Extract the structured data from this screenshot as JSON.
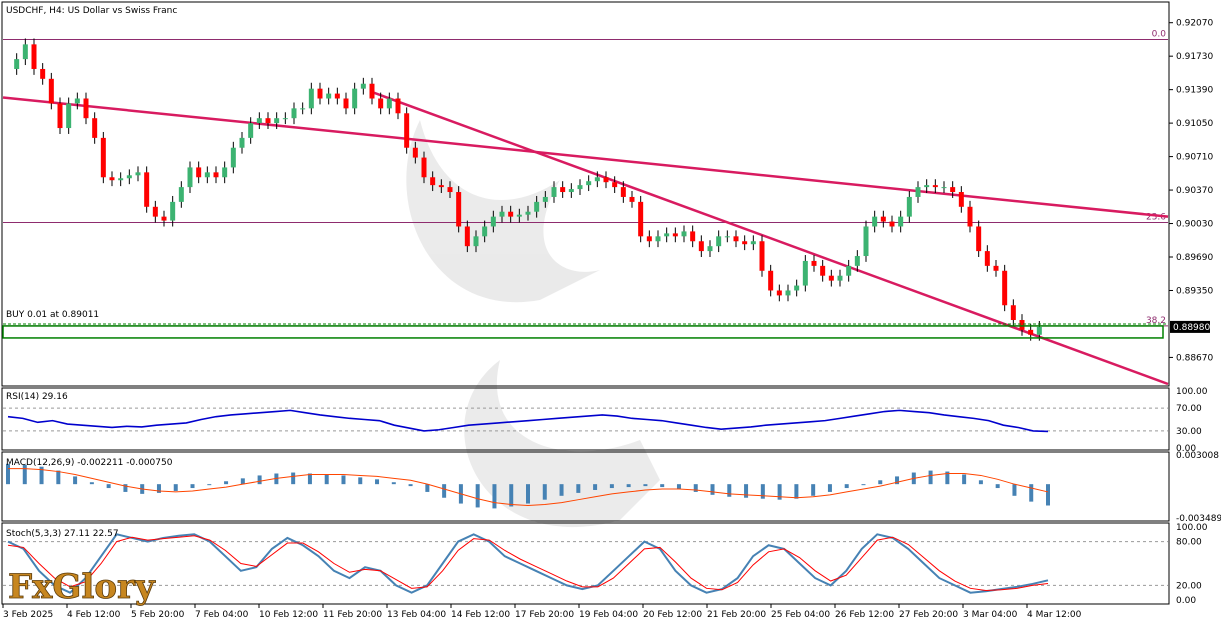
{
  "chart_data": {
    "symbol_title": "USDCHF, H4:  US Dollar vs Swiss Franc",
    "type": "candlestick",
    "colors": {
      "bull": "#3cb371",
      "bear": "#ff0000",
      "trend": "#d81b60",
      "level": "#8e2c6e",
      "rsi": "#0000cd",
      "macd_hist": "#4682b4",
      "signal": "#ff4500",
      "buy_zone": "#008000"
    },
    "price_axis": {
      "min": 0.884,
      "max": 0.9226,
      "ticks": [
        "0.92070",
        "0.91730",
        "0.91390",
        "0.91050",
        "0.90710",
        "0.90370",
        "0.90030",
        "0.89690",
        "0.89350",
        "0.88670"
      ],
      "current": "0.88980"
    },
    "time_labels": [
      "3 Feb 2025",
      "4 Feb 12:00",
      "5 Feb 20:00",
      "7 Feb 04:00",
      "10 Feb 12:00",
      "11 Feb 20:00",
      "13 Feb 04:00",
      "14 Feb 12:00",
      "17 Feb 20:00",
      "19 Feb 04:00",
      "20 Feb 12:00",
      "21 Feb 20:00",
      "25 Feb 04:00",
      "26 Feb 12:00",
      "27 Feb 20:00",
      "3 Mar 04:00",
      "4 Mar 12:00"
    ],
    "close_path": [
      0.916,
      0.917,
      0.9185,
      0.916,
      0.915,
      0.9125,
      0.91,
      0.9125,
      0.913,
      0.911,
      0.909,
      0.905,
      0.9047,
      0.9049,
      0.9052,
      0.9055,
      0.902,
      0.901,
      0.9006,
      0.9025,
      0.904,
      0.906,
      0.905,
      0.9055,
      0.905,
      0.906,
      0.908,
      0.909,
      0.9105,
      0.911,
      0.9105,
      0.911,
      0.911,
      0.912,
      0.912,
      0.914,
      0.913,
      0.9135,
      0.913,
      0.912,
      0.914,
      0.9145,
      0.913,
      0.912,
      0.913,
      0.9115,
      0.908,
      0.907,
      0.905,
      0.9042,
      0.904,
      0.9035,
      0.9,
      0.898,
      0.899,
      0.9,
      0.901,
      0.9015,
      0.901,
      0.9012,
      0.9015,
      0.9025,
      0.903,
      0.904,
      0.9035,
      0.9038,
      0.9042,
      0.9046,
      0.905,
      0.9045,
      0.904,
      0.903,
      0.9025,
      0.899,
      0.8985,
      0.899,
      0.8993,
      0.899,
      0.8995,
      0.8985,
      0.8975,
      0.898,
      0.899,
      0.899,
      0.8985,
      0.8982,
      0.8985,
      0.8955,
      0.8935,
      0.893,
      0.8935,
      0.894,
      0.8965,
      0.896,
      0.895,
      0.8945,
      0.895,
      0.896,
      0.897,
      0.9,
      0.901,
      0.9005,
      0.9,
      0.901,
      0.903,
      0.904,
      0.9042,
      0.904,
      0.904,
      0.9035,
      0.902,
      0.9,
      0.8975,
      0.896,
      0.8955,
      0.892,
      0.8905,
      0.8895,
      0.889,
      0.8898
    ],
    "levels": [
      {
        "label": "0.0",
        "price": 0.919
      },
      {
        "label": "23.6",
        "price": 0.9004
      },
      {
        "label": "38.2",
        "price": 0.8899
      }
    ],
    "trendlines": [
      {
        "from": [
          0,
          0.9131
        ],
        "to": [
          1,
          0.901
        ]
      },
      {
        "from": [
          0.318,
          0.9136
        ],
        "to": [
          1,
          0.884
        ]
      }
    ],
    "order_label": "BUY 0.01 at 0.89011",
    "order_price": 0.8901,
    "rsi": {
      "label": "RSI(14) 29.16",
      "ticks": [
        "100.00",
        "70.00",
        "30.00",
        "0.00"
      ],
      "values": [
        55,
        52,
        45,
        48,
        42,
        40,
        38,
        36,
        38,
        37,
        40,
        42,
        44,
        50,
        55,
        58,
        60,
        62,
        64,
        66,
        62,
        58,
        55,
        52,
        50,
        48,
        40,
        35,
        30,
        32,
        36,
        40,
        42,
        44,
        46,
        48,
        50,
        52,
        54,
        56,
        58,
        56,
        52,
        50,
        48,
        44,
        40,
        36,
        33,
        35,
        37,
        40,
        42,
        44,
        46,
        48,
        52,
        56,
        60,
        64,
        66,
        64,
        62,
        58,
        55,
        52,
        48,
        40,
        36,
        30,
        29
      ]
    },
    "macd": {
      "label": "MACD(12,26,9) -0.002211 -0.000750",
      "ticks": [
        "0.003008",
        "-0.003489"
      ],
      "histogram": [
        0.0021,
        0.002,
        0.0018,
        0.0014,
        0.0008,
        0.0002,
        -0.0004,
        -0.0008,
        -0.001,
        -0.0009,
        -0.0007,
        -0.0004,
        -0.0001,
        0.0003,
        0.0006,
        0.0009,
        0.0011,
        0.0012,
        0.0011,
        0.001,
        0.0009,
        0.0007,
        0.0005,
        0.0002,
        -0.0002,
        -0.0008,
        -0.0014,
        -0.002,
        -0.0024,
        -0.0025,
        -0.0023,
        -0.002,
        -0.0016,
        -0.0012,
        -0.0009,
        -0.0006,
        -0.0004,
        -0.0003,
        -0.0002,
        -0.0003,
        -0.0005,
        -0.0008,
        -0.0011,
        -0.0013,
        -0.0014,
        -0.0015,
        -0.0016,
        -0.0015,
        -0.0012,
        -0.0008,
        -0.0004,
        0.0,
        0.0004,
        0.0008,
        0.0012,
        0.0014,
        0.0013,
        0.001,
        0.0004,
        -0.0004,
        -0.0012,
        -0.0018,
        -0.0022
      ],
      "signal": [
        0.0016,
        0.0016,
        0.0015,
        0.0013,
        0.001,
        0.0006,
        0.0002,
        -0.0002,
        -0.0005,
        -0.0007,
        -0.0008,
        -0.0007,
        -0.0005,
        -0.0003,
        0.0,
        0.0003,
        0.0006,
        0.0008,
        0.001,
        0.001,
        0.001,
        0.0009,
        0.0008,
        0.0006,
        0.0004,
        0.0,
        -0.0005,
        -0.001,
        -0.0015,
        -0.0019,
        -0.0021,
        -0.0022,
        -0.0021,
        -0.0019,
        -0.0016,
        -0.0013,
        -0.001,
        -0.0008,
        -0.0006,
        -0.0005,
        -0.0005,
        -0.0006,
        -0.0008,
        -0.001,
        -0.0011,
        -0.0012,
        -0.0013,
        -0.0014,
        -0.0013,
        -0.0011,
        -0.0008,
        -0.0005,
        -0.0002,
        0.0002,
        0.0006,
        0.0009,
        0.0011,
        0.0011,
        0.0009,
        0.0005,
        0.0,
        -0.0004,
        -0.0008
      ]
    },
    "stoch": {
      "label": "Stoch(5,3,3) 27.11 22.57",
      "ticks": [
        "100.00",
        "80.00",
        "20.00",
        "0.00"
      ],
      "main": [
        80,
        70,
        40,
        20,
        10,
        30,
        60,
        90,
        85,
        80,
        85,
        88,
        90,
        80,
        60,
        40,
        45,
        70,
        85,
        75,
        60,
        40,
        30,
        45,
        40,
        20,
        10,
        20,
        50,
        80,
        90,
        80,
        60,
        50,
        40,
        30,
        20,
        15,
        20,
        40,
        60,
        80,
        70,
        40,
        20,
        10,
        15,
        30,
        60,
        75,
        70,
        50,
        30,
        20,
        40,
        70,
        90,
        85,
        70,
        50,
        30,
        20,
        10,
        12,
        15,
        18,
        22,
        27
      ],
      "signal": [
        75,
        72,
        50,
        30,
        18,
        25,
        50,
        80,
        86,
        82,
        84,
        86,
        88,
        82,
        68,
        50,
        46,
        62,
        78,
        78,
        66,
        50,
        38,
        42,
        40,
        28,
        16,
        18,
        40,
        68,
        84,
        82,
        68,
        56,
        46,
        36,
        26,
        18,
        18,
        30,
        50,
        70,
        72,
        52,
        30,
        16,
        14,
        24,
        48,
        66,
        70,
        58,
        40,
        26,
        34,
        58,
        82,
        86,
        76,
        58,
        40,
        26,
        16,
        13,
        14,
        16,
        20,
        22.57
      ]
    },
    "brand": "FxGlory"
  }
}
